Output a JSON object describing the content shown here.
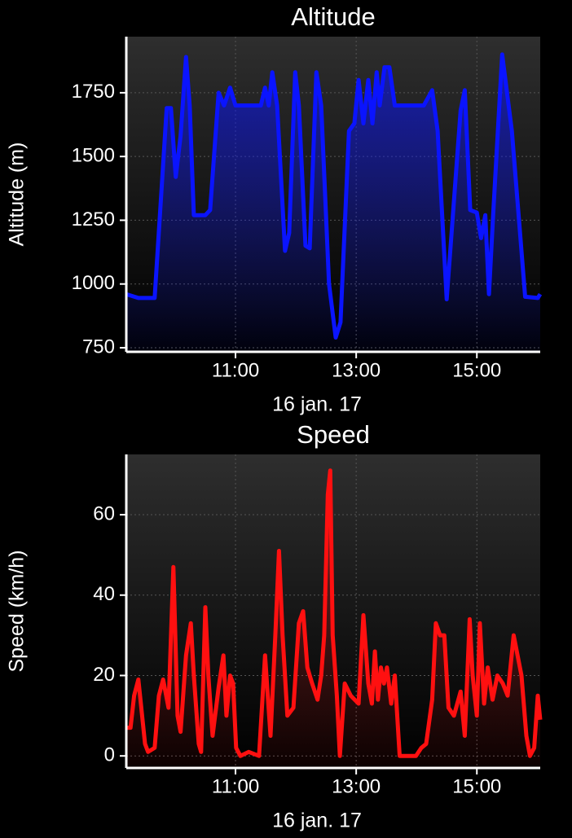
{
  "chart_data": [
    {
      "type": "line",
      "title": "Altitude",
      "ylabel": "Altitude (m)",
      "xlabel": "16 jan. 17",
      "xlim": [
        9.19,
        16.05
      ],
      "ylim": [
        734,
        1970
      ],
      "xticks": [
        {
          "value": 11,
          "label": "11:00"
        },
        {
          "value": 13,
          "label": "13:00"
        },
        {
          "value": 15,
          "label": "15:00"
        }
      ],
      "yticks": [
        750,
        1000,
        1250,
        1500,
        1750
      ],
      "grid": true,
      "x": [
        9.19,
        9.39,
        9.66,
        9.86,
        9.93,
        10.01,
        10.09,
        10.18,
        10.24,
        10.31,
        10.5,
        10.58,
        10.72,
        10.81,
        10.91,
        11,
        11.42,
        11.49,
        11.55,
        11.61,
        11.69,
        11.82,
        11.89,
        11.99,
        12.05,
        12.16,
        12.23,
        12.34,
        12.42,
        12.55,
        12.66,
        12.74,
        12.88,
        12.97,
        13.04,
        13.12,
        13.2,
        13.27,
        13.34,
        13.39,
        13.47,
        13.55,
        13.64,
        14.12,
        14.26,
        14.35,
        14.5,
        14.73,
        14.8,
        14.89,
        15,
        15.07,
        15.14,
        15.2,
        15.27,
        15.42,
        15.58,
        15.8,
        16.01,
        16.05
      ],
      "series": [
        {
          "name": "Altitude",
          "color": "#0a14ff",
          "values": [
            960,
            945,
            945,
            1690,
            1690,
            1420,
            1580,
            1890,
            1700,
            1270,
            1270,
            1290,
            1750,
            1700,
            1770,
            1700,
            1700,
            1770,
            1700,
            1830,
            1700,
            1130,
            1200,
            1830,
            1700,
            1150,
            1140,
            1830,
            1700,
            1000,
            790,
            850,
            1600,
            1630,
            1800,
            1630,
            1800,
            1630,
            1830,
            1700,
            1850,
            1850,
            1700,
            1700,
            1760,
            1600,
            940,
            1680,
            1760,
            1290,
            1280,
            1180,
            1270,
            960,
            1270,
            1900,
            1600,
            950,
            945,
            960
          ]
        }
      ]
    },
    {
      "type": "line",
      "title": "Speed",
      "ylabel": "Speed (km/h)",
      "xlabel": "16 jan. 17",
      "xlim": [
        9.19,
        16.05
      ],
      "ylim": [
        -3,
        75
      ],
      "xticks": [
        {
          "value": 11,
          "label": "11:00"
        },
        {
          "value": 13,
          "label": "13:00"
        },
        {
          "value": 15,
          "label": "15:00"
        }
      ],
      "yticks": [
        0,
        20,
        40,
        60
      ],
      "grid": true,
      "x": [
        9.19,
        9.26,
        9.32,
        9.39,
        9.5,
        9.55,
        9.66,
        9.73,
        9.8,
        9.89,
        9.97,
        10.04,
        10.09,
        10.18,
        10.26,
        10.31,
        10.39,
        10.43,
        10.5,
        10.55,
        10.62,
        10.72,
        10.8,
        10.85,
        10.91,
        10.96,
        11.01,
        11.08,
        11.22,
        11.39,
        11.49,
        11.58,
        11.66,
        11.72,
        11.78,
        11.86,
        11.96,
        12.05,
        12.12,
        12.19,
        12.27,
        12.36,
        12.42,
        12.47,
        12.53,
        12.57,
        12.61,
        12.68,
        12.73,
        12.81,
        12.91,
        13.04,
        13.12,
        13.2,
        13.26,
        13.31,
        13.36,
        13.41,
        13.46,
        13.51,
        13.58,
        13.64,
        13.72,
        13.99,
        14.08,
        14.16,
        14.26,
        14.32,
        14.39,
        14.46,
        14.53,
        14.62,
        14.73,
        14.8,
        14.88,
        14.93,
        15,
        15.05,
        15.12,
        15.18,
        15.26,
        15.34,
        15.43,
        15.51,
        15.61,
        15.74,
        15.82,
        15.88,
        15.95,
        16.01,
        16.05
      ],
      "series": [
        {
          "name": "Speed",
          "color": "#ff1010",
          "values": [
            7,
            7,
            15,
            19,
            3,
            1,
            2,
            15,
            19,
            12,
            47,
            10,
            6,
            25,
            33,
            20,
            3,
            1,
            37,
            20,
            5,
            17,
            25,
            10,
            20,
            18,
            2,
            0,
            1,
            0,
            25,
            5,
            30,
            51,
            30,
            10,
            12,
            33,
            36,
            22,
            18,
            14,
            20,
            30,
            65,
            71,
            30,
            15,
            0,
            18,
            15,
            13,
            35,
            18,
            13,
            26,
            14,
            22,
            18,
            22,
            13,
            20,
            0,
            0,
            2,
            3,
            14,
            33,
            30,
            30,
            12,
            10,
            16,
            5,
            34,
            20,
            10,
            33,
            13,
            22,
            14,
            20,
            18,
            15,
            30,
            20,
            5,
            0,
            2,
            15,
            9
          ]
        }
      ]
    }
  ]
}
